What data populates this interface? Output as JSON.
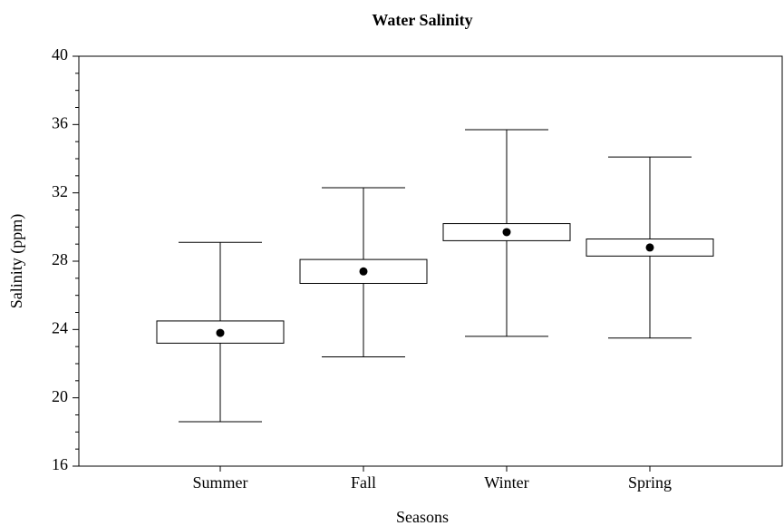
{
  "chart_data": {
    "type": "box",
    "title": "Water Salinity",
    "x_label": "Seasons",
    "y_label": "Salinity (ppm)",
    "categories": [
      "Summer",
      "Fall",
      "Winter",
      "Spring"
    ],
    "whisker_low": [
      18.6,
      22.4,
      23.6,
      23.5
    ],
    "box_low": [
      23.2,
      26.7,
      29.2,
      28.3
    ],
    "mean": [
      23.8,
      27.4,
      29.7,
      28.8
    ],
    "box_high": [
      24.5,
      28.1,
      30.2,
      29.3
    ],
    "whisker_high": [
      29.1,
      32.3,
      35.7,
      34.1
    ],
    "color": "#000000",
    "ylim": [
      16,
      40
    ],
    "yticks": [
      16,
      20,
      24,
      28,
      32,
      36,
      40
    ],
    "yminor_ticks": [
      17,
      18,
      19,
      21,
      22,
      23,
      25,
      26,
      27,
      29,
      30,
      31,
      33,
      34,
      35,
      37,
      38,
      39
    ],
    "grid": false
  }
}
